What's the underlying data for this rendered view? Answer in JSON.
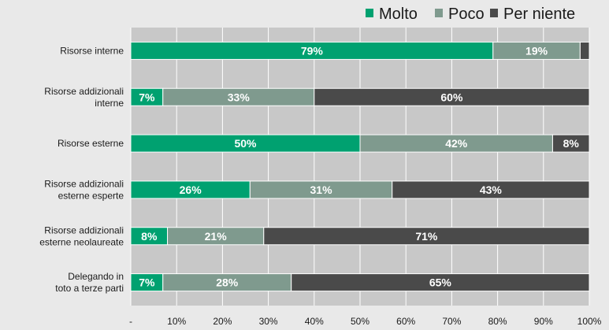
{
  "chart_data": {
    "type": "bar",
    "orientation": "horizontal",
    "stacked": true,
    "categories": [
      [
        "Risorse interne"
      ],
      [
        "Risorse addizionali",
        "interne"
      ],
      [
        "Risorse esterne"
      ],
      [
        "Risorse addizionali",
        "esterne esperte"
      ],
      [
        "Risorse addizionali",
        "esterne neolaureate"
      ],
      [
        "Delegando in",
        "toto a terze parti"
      ]
    ],
    "series": [
      {
        "name": "Molto",
        "color": "#00a170",
        "values": [
          79,
          7,
          50,
          26,
          8,
          7
        ]
      },
      {
        "name": "Poco",
        "color": "#7f9a8e",
        "values": [
          19,
          33,
          42,
          31,
          21,
          28
        ]
      },
      {
        "name": "Per niente",
        "color": "#4a4a4a",
        "values": [
          2,
          60,
          8,
          43,
          71,
          65
        ]
      }
    ],
    "data_labels": [
      [
        "79%",
        "19%",
        ""
      ],
      [
        "7%",
        "33%",
        "60%"
      ],
      [
        "50%",
        "42%",
        "8%"
      ],
      [
        "26%",
        "31%",
        "43%"
      ],
      [
        "8%",
        "21%",
        "71%"
      ],
      [
        "7%",
        "28%",
        "65%"
      ]
    ],
    "x_ticks": [
      0,
      10,
      20,
      30,
      40,
      50,
      60,
      70,
      80,
      90,
      100
    ],
    "x_tick_labels": [
      "-",
      "10%",
      "20%",
      "30%",
      "40%",
      "50%",
      "60%",
      "70%",
      "80%",
      "90%",
      "100%"
    ],
    "xlim": [
      0,
      100
    ],
    "grid": true,
    "legend_position": "top-right",
    "plot_background": "#c8c8c8",
    "page_background": "#e9e9e9"
  }
}
